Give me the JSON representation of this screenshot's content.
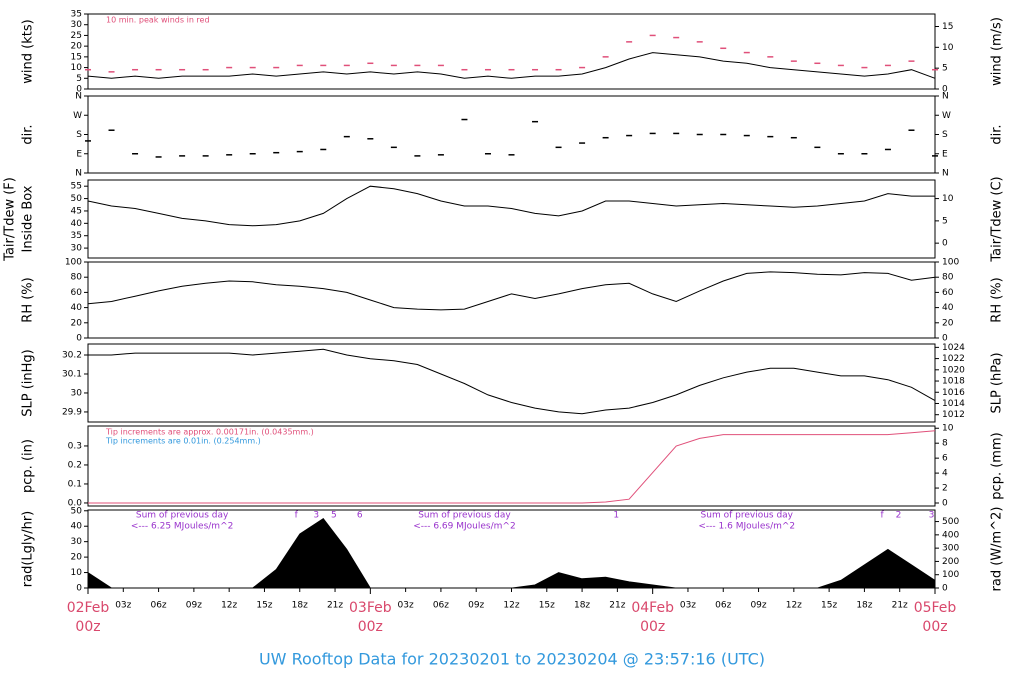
{
  "title": "UW Rooftop Data for 20230201  to  20230204 @ 23:57:16  (UTC)",
  "chart_data": [
    {
      "type": "line",
      "ylabel": "wind (kts)",
      "y2label": "wind (m/s)",
      "annotations": [
        {
          "label": "10 min. peak winds in red",
          "color": "#e0507a"
        }
      ],
      "xlim": [
        0,
        72
      ],
      "ylim": [
        0,
        35
      ],
      "yticks": [
        0,
        5,
        10,
        15,
        20,
        25,
        30,
        35
      ],
      "y2lim": [
        0,
        18
      ],
      "y2ticks": [
        0,
        5,
        10,
        15
      ],
      "x": [
        0,
        2,
        4,
        6,
        8,
        10,
        12,
        14,
        16,
        18,
        20,
        22,
        24,
        26,
        28,
        30,
        32,
        34,
        36,
        38,
        40,
        42,
        44,
        46,
        48,
        50,
        52,
        54,
        56,
        58,
        60,
        62,
        64,
        66,
        68,
        70,
        72
      ],
      "series": [
        {
          "color": "#000000",
          "values": [
            6,
            5,
            6,
            5,
            6,
            6,
            6,
            7,
            6,
            7,
            8,
            7,
            8,
            7,
            8,
            7,
            5,
            6,
            5,
            6,
            6,
            7,
            10,
            14,
            17,
            16,
            15,
            13,
            12,
            10,
            9,
            8,
            7,
            6,
            7,
            9,
            5
          ]
        },
        {
          "type": "dash",
          "color": "#e0507a",
          "values": [
            9,
            8,
            9,
            9,
            9,
            9,
            10,
            10,
            10,
            11,
            11,
            11,
            12,
            11,
            11,
            11,
            9,
            9,
            9,
            9,
            9,
            10,
            15,
            22,
            25,
            24,
            22,
            19,
            17,
            15,
            13,
            12,
            11,
            10,
            11,
            13,
            9
          ]
        }
      ]
    },
    {
      "type": "dash",
      "ylabel": "dir.",
      "y2label": "dir.",
      "xlim": [
        0,
        72
      ],
      "ylim": [
        0,
        360
      ],
      "yticks": [
        {
          "value": 0,
          "label": "N"
        },
        {
          "value": 90,
          "label": "E"
        },
        {
          "value": 180,
          "label": "S"
        },
        {
          "value": 270,
          "label": "W"
        },
        {
          "value": 360,
          "label": "N"
        }
      ],
      "y2lim": [
        0,
        360
      ],
      "y2ticks": [
        {
          "value": 0,
          "label": "N"
        },
        {
          "value": 90,
          "label": "E"
        },
        {
          "value": 180,
          "label": "S"
        },
        {
          "value": 270,
          "label": "W"
        },
        {
          "value": 360,
          "label": "N"
        }
      ],
      "x": [
        0,
        2,
        4,
        6,
        8,
        10,
        12,
        14,
        16,
        18,
        20,
        22,
        24,
        26,
        28,
        30,
        32,
        34,
        36,
        38,
        40,
        42,
        44,
        46,
        48,
        50,
        52,
        54,
        56,
        58,
        60,
        62,
        64,
        66,
        68,
        70,
        72
      ],
      "series": [
        {
          "color": "#000000",
          "values": [
            150,
            200,
            90,
            75,
            80,
            80,
            85,
            90,
            95,
            100,
            110,
            170,
            160,
            120,
            80,
            85,
            250,
            90,
            85,
            240,
            120,
            140,
            165,
            175,
            185,
            185,
            180,
            180,
            175,
            170,
            165,
            120,
            90,
            90,
            110,
            200,
            80
          ]
        }
      ]
    },
    {
      "type": "line",
      "ylabel": "Tair/Tdew (F)",
      "ylabel_line2": "Inside Box",
      "y2label": "Tair/Tdew (C)",
      "xlim": [
        0,
        72
      ],
      "ylim": [
        26,
        57.5
      ],
      "yticks": [
        30,
        35,
        40,
        45,
        50,
        55
      ],
      "y2lim": [
        -3.33,
        14.17
      ],
      "y2ticks": [
        0,
        5,
        10
      ],
      "x": [
        0,
        2,
        4,
        6,
        8,
        10,
        12,
        14,
        16,
        18,
        20,
        22,
        24,
        26,
        28,
        30,
        32,
        34,
        36,
        38,
        40,
        42,
        44,
        46,
        48,
        50,
        52,
        54,
        56,
        58,
        60,
        62,
        64,
        66,
        68,
        70,
        72
      ],
      "series": [
        {
          "color": "#000000",
          "values": [
            49,
            47,
            46,
            44,
            42,
            41,
            39.5,
            39,
            39.5,
            41,
            44,
            50,
            55,
            54,
            52,
            49,
            47,
            47,
            46,
            44,
            43,
            45,
            49,
            49,
            48,
            47,
            47.5,
            48,
            47.5,
            47,
            46.5,
            47,
            48,
            49,
            52,
            51,
            51
          ]
        }
      ]
    },
    {
      "type": "line",
      "ylabel": "RH (%)",
      "y2label": "RH (%)",
      "xlim": [
        0,
        72
      ],
      "ylim": [
        0,
        100
      ],
      "yticks": [
        0,
        20,
        40,
        60,
        80,
        100
      ],
      "y2lim": [
        0,
        100
      ],
      "y2ticks": [
        0,
        20,
        40,
        60,
        80,
        100
      ],
      "x": [
        0,
        2,
        4,
        6,
        8,
        10,
        12,
        14,
        16,
        18,
        20,
        22,
        24,
        26,
        28,
        30,
        32,
        34,
        36,
        38,
        40,
        42,
        44,
        46,
        48,
        50,
        52,
        54,
        56,
        58,
        60,
        62,
        64,
        66,
        68,
        70,
        72
      ],
      "series": [
        {
          "color": "#000000",
          "values": [
            45,
            48,
            55,
            62,
            68,
            72,
            75,
            74,
            70,
            68,
            65,
            60,
            50,
            40,
            38,
            37,
            38,
            48,
            58,
            52,
            58,
            65,
            70,
            72,
            58,
            48,
            62,
            75,
            85,
            87,
            86,
            84,
            83,
            86,
            85,
            76,
            80
          ]
        }
      ]
    },
    {
      "type": "line",
      "ylabel": "SLP (inHg)",
      "y2label": "SLP (hPa)",
      "xlim": [
        0,
        72
      ],
      "ylim": [
        29.847,
        30.258
      ],
      "yticks": [
        29.9,
        30.0,
        30.1,
        30.2
      ],
      "y2lim": [
        1010.7,
        1024.6
      ],
      "y2ticks": [
        1012,
        1014,
        1016,
        1018,
        1020,
        1022,
        1024
      ],
      "x": [
        0,
        2,
        4,
        6,
        8,
        10,
        12,
        14,
        16,
        18,
        20,
        22,
        24,
        26,
        28,
        30,
        32,
        34,
        36,
        38,
        40,
        42,
        44,
        46,
        48,
        50,
        52,
        54,
        56,
        58,
        60,
        62,
        64,
        66,
        68,
        70,
        72
      ],
      "series": [
        {
          "color": "#000000",
          "values": [
            30.2,
            30.2,
            30.21,
            30.21,
            30.21,
            30.21,
            30.21,
            30.2,
            30.21,
            30.22,
            30.23,
            30.2,
            30.18,
            30.17,
            30.15,
            30.1,
            30.05,
            29.99,
            29.95,
            29.92,
            29.9,
            29.89,
            29.91,
            29.92,
            29.95,
            29.99,
            30.04,
            30.08,
            30.11,
            30.13,
            30.13,
            30.11,
            30.09,
            30.09,
            30.07,
            30.03,
            29.96
          ]
        }
      ]
    },
    {
      "type": "line",
      "ylabel": "pcp. (in)",
      "y2label": "pcp. (mm)",
      "annotations": [
        {
          "label": "Tip increments are approx. 0.00171in. (0.0435mm.)",
          "color": "#e0507a"
        },
        {
          "label": "Tip increments are 0.01in. (0.254mm.)",
          "color": "#3399dd"
        }
      ],
      "xlim": [
        0,
        72
      ],
      "ylim": [
        -0.016,
        0.405
      ],
      "yticks": [
        {
          "value": 0,
          "label": "0.0"
        },
        {
          "value": 0.1,
          "label": "0.1"
        },
        {
          "value": 0.2,
          "label": "0.2"
        },
        {
          "value": 0.3,
          "label": "0.3"
        }
      ],
      "y2lim": [
        -0.4,
        10.3
      ],
      "y2ticks": [
        0,
        2,
        4,
        6,
        8,
        10
      ],
      "x": [
        0,
        2,
        4,
        6,
        8,
        10,
        12,
        14,
        16,
        18,
        20,
        22,
        24,
        26,
        28,
        30,
        32,
        34,
        36,
        38,
        40,
        42,
        44,
        46,
        48,
        50,
        52,
        54,
        56,
        58,
        60,
        62,
        64,
        66,
        68,
        70,
        72
      ],
      "series": [
        {
          "color": "#e0507a",
          "values": [
            0,
            0,
            0,
            0,
            0,
            0,
            0,
            0,
            0,
            0,
            0,
            0,
            0,
            0,
            0,
            0,
            0,
            0,
            0,
            0,
            0,
            0,
            0.005,
            0.02,
            0.16,
            0.3,
            0.34,
            0.36,
            0.36,
            0.36,
            0.36,
            0.36,
            0.36,
            0.36,
            0.36,
            0.37,
            0.38
          ]
        }
      ]
    },
    {
      "type": "area",
      "ylabel": "rad(Lgly/hr)",
      "y2label": "rad (W/m^2)",
      "xlim": [
        0,
        72
      ],
      "ylim": [
        0,
        50.5
      ],
      "yticks": [
        0,
        10,
        20,
        30,
        40,
        50
      ],
      "y2lim": [
        0,
        587
      ],
      "y2ticks": [
        0,
        100,
        200,
        300,
        400,
        500
      ],
      "x": [
        0,
        2,
        4,
        6,
        8,
        10,
        12,
        14,
        16,
        18,
        20,
        22,
        24,
        26,
        28,
        30,
        32,
        34,
        36,
        38,
        40,
        42,
        44,
        46,
        48,
        50,
        52,
        54,
        56,
        58,
        60,
        62,
        64,
        66,
        68,
        70,
        72
      ],
      "series": [
        {
          "color": "#000000",
          "values": [
            10,
            0,
            0,
            0,
            0,
            0,
            0,
            0,
            12,
            35,
            45,
            25,
            0,
            0,
            0,
            0,
            0,
            0,
            0,
            2,
            10,
            6,
            7,
            4,
            2,
            0,
            0,
            0,
            0,
            0,
            0,
            0,
            5,
            15,
            25,
            15,
            5
          ]
        }
      ],
      "flags": [
        {
          "x": 17.7,
          "label": "f"
        },
        {
          "x": 19.4,
          "label": "3"
        },
        {
          "x": 20.9,
          "label": "5"
        },
        {
          "x": 23.1,
          "label": "6"
        },
        {
          "x": 44.9,
          "label": "1"
        },
        {
          "x": 67.5,
          "label": "f"
        },
        {
          "x": 68.9,
          "label": "2"
        },
        {
          "x": 71.7,
          "label": "3"
        }
      ],
      "sums": [
        {
          "x": 8,
          "label": "Sum of previous day",
          "detail": "<--- 6.25 MJoules/m^2"
        },
        {
          "x": 32,
          "label": "Sum of previous day",
          "detail": "<--- 6.69 MJoules/m^2"
        },
        {
          "x": 56,
          "label": "Sum of previous day",
          "detail": "<--- 1.6 MJoules/m^2"
        }
      ],
      "xticks": [
        {
          "value": 3,
          "label": "03z"
        },
        {
          "value": 6,
          "label": "06z"
        },
        {
          "value": 9,
          "label": "09z"
        },
        {
          "value": 12,
          "label": "12z"
        },
        {
          "value": 15,
          "label": "15z"
        },
        {
          "value": 18,
          "label": "18z"
        },
        {
          "value": 21,
          "label": "21z"
        },
        {
          "value": 27,
          "label": "03z"
        },
        {
          "value": 30,
          "label": "06z"
        },
        {
          "value": 33,
          "label": "09z"
        },
        {
          "value": 36,
          "label": "12z"
        },
        {
          "value": 39,
          "label": "15z"
        },
        {
          "value": 42,
          "label": "18z"
        },
        {
          "value": 45,
          "label": "21z"
        },
        {
          "value": 51,
          "label": "03z"
        },
        {
          "value": 54,
          "label": "06z"
        },
        {
          "value": 57,
          "label": "09z"
        },
        {
          "value": 60,
          "label": "12z"
        },
        {
          "value": 63,
          "label": "15z"
        },
        {
          "value": 66,
          "label": "18z"
        },
        {
          "value": 69,
          "label": "21z"
        }
      ],
      "day_ticks": [
        {
          "value": 0,
          "label": "02Feb",
          "label2": "00z"
        },
        {
          "value": 24,
          "label": "03Feb",
          "label2": "00z"
        },
        {
          "value": 48,
          "label": "04Feb",
          "label2": "00z"
        },
        {
          "value": 72,
          "label": "05Feb",
          "label2": "00z"
        }
      ]
    }
  ]
}
